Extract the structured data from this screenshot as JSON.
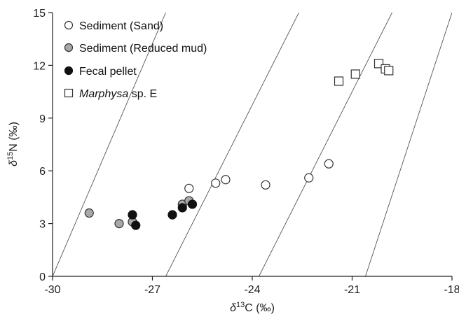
{
  "chart_data": {
    "type": "scatter",
    "x_axis": {
      "label_symbol": "δ",
      "label_sup": "13",
      "label_rest": "C (‰)",
      "range": [
        -30,
        -18
      ],
      "ticks": [
        -30,
        -27,
        -24,
        -21,
        -18
      ],
      "tick_labels": [
        "-30",
        "-27",
        "-24",
        "-21",
        "-18"
      ]
    },
    "y_axis": {
      "label_symbol": "δ",
      "label_sup": "15",
      "label_rest": "N (‰)",
      "range": [
        0,
        15
      ],
      "ticks": [
        0,
        3,
        6,
        9,
        12,
        15
      ],
      "tick_labels": [
        "0",
        "3",
        "6",
        "9",
        "12",
        "15"
      ]
    },
    "grid": false,
    "legend_placement": "top-left",
    "reference_lines": [
      {
        "x_at_y0": -30,
        "x_at_y15": -26.6
      },
      {
        "x_at_y0": -26.6,
        "x_at_y15": -22.6
      },
      {
        "x_at_y0": -23.8,
        "x_at_y15": -19.8
      },
      {
        "x_at_y0": -20.6,
        "x_at_y15": -18.0
      }
    ],
    "series": [
      {
        "name": "Sediment (Sand)",
        "marker": "circle",
        "fill": "#ffffff",
        "stroke": "#333333",
        "points": [
          {
            "x": -25.9,
            "y": 5.0
          },
          {
            "x": -25.1,
            "y": 5.3
          },
          {
            "x": -24.8,
            "y": 5.5
          },
          {
            "x": -23.6,
            "y": 5.2
          },
          {
            "x": -22.3,
            "y": 5.6
          },
          {
            "x": -21.7,
            "y": 6.4
          }
        ]
      },
      {
        "name": "Sediment (Reduced mud)",
        "marker": "circle",
        "fill": "#a8a8a8",
        "stroke": "#333333",
        "points": [
          {
            "x": -28.9,
            "y": 3.6
          },
          {
            "x": -28.0,
            "y": 3.0
          },
          {
            "x": -27.6,
            "y": 3.1
          },
          {
            "x": -26.1,
            "y": 4.1
          },
          {
            "x": -25.9,
            "y": 4.3
          }
        ]
      },
      {
        "name": "Fecal pellet",
        "marker": "circle",
        "fill": "#111111",
        "stroke": "#111111",
        "points": [
          {
            "x": -27.6,
            "y": 3.5
          },
          {
            "x": -27.5,
            "y": 2.9
          },
          {
            "x": -26.4,
            "y": 3.5
          },
          {
            "x": -26.1,
            "y": 3.9
          },
          {
            "x": -25.8,
            "y": 4.1
          }
        ]
      },
      {
        "name": "Marphysa sp. E",
        "name_italic": "Marphysa",
        "name_rest": " sp. E",
        "marker": "square",
        "fill": "#ffffff",
        "stroke": "#333333",
        "points": [
          {
            "x": -21.4,
            "y": 11.1
          },
          {
            "x": -20.9,
            "y": 11.5
          },
          {
            "x": -20.2,
            "y": 12.1
          },
          {
            "x": -20.0,
            "y": 11.8
          },
          {
            "x": -19.9,
            "y": 11.7
          }
        ]
      }
    ]
  }
}
